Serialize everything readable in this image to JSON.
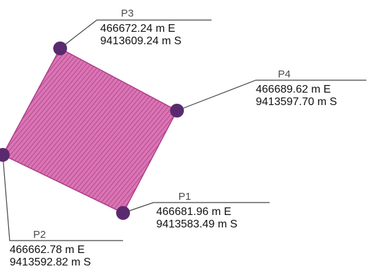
{
  "parcel": {
    "fill_color": "#d975b3",
    "hatch_color": "#b03c8a",
    "marker_color": "#5a2a6e",
    "leader_color": "#444444"
  },
  "points": {
    "p1": {
      "name": "P1",
      "easting": "466681.96 m E",
      "northing": "9413583.49 m S"
    },
    "p2": {
      "name": "P2",
      "easting": "466662.78 m E",
      "northing": "9413592.82 m S"
    },
    "p3": {
      "name": "P3",
      "easting": "466672.24 m E",
      "northing": "9413609.24 m S"
    },
    "p4": {
      "name": "P4",
      "easting": "466689.62 m E",
      "northing": "9413597.70 m S"
    }
  }
}
